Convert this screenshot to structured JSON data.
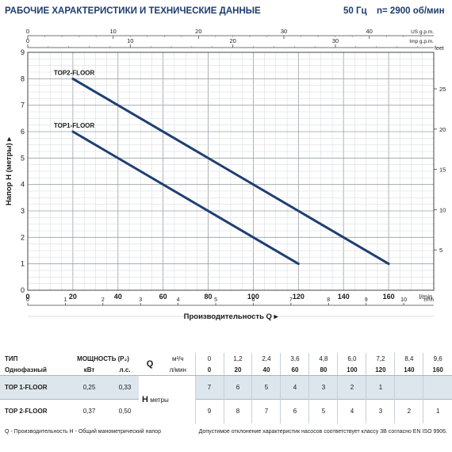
{
  "header": {
    "title": "РАБОЧИЕ ХАРАКТЕРИСТИКИ И ТЕХНИЧЕСКИЕ ДАННЫЕ",
    "freq": "50 Гц",
    "rpm": "n= 2900 об/мин"
  },
  "chart_data": {
    "type": "line",
    "ylabel": "Напор H (метры)",
    "xlabel": "Производительность Q",
    "x_unit_lmin": "l/min",
    "x_unit_m3h": "m³/h",
    "y2_unit": "feet",
    "top1_unit": "US g.p.m.",
    "top2_unit": "Imp g.p.m.",
    "xlim": [
      0,
      180
    ],
    "ylim": [
      0,
      9
    ],
    "grid": true,
    "x_ticks_lmin": [
      "0",
      "20",
      "40",
      "60",
      "80",
      "100",
      "120",
      "140",
      "160"
    ],
    "x_ticks_m3h": [
      "0",
      "1",
      "2",
      "3",
      "4",
      "5",
      "6",
      "7",
      "8",
      "9",
      "10"
    ],
    "y_ticks": [
      "0",
      "1",
      "2",
      "3",
      "4",
      "5",
      "6",
      "7",
      "8",
      "9"
    ],
    "feet_ticks": [
      "5",
      "10",
      "15",
      "20",
      "25"
    ],
    "us_gpm_ticks": [
      "0",
      "10",
      "20",
      "30",
      "40"
    ],
    "imp_gpm_ticks": [
      "0",
      "10",
      "20",
      "30"
    ],
    "series": [
      {
        "name": "TOP1-FLOOR",
        "x": [
          20,
          120
        ],
        "y": [
          6,
          1
        ],
        "color": "#1f3f73"
      },
      {
        "name": "TOP2-FLOOR",
        "x": [
          20,
          160
        ],
        "y": [
          8,
          1
        ],
        "color": "#1f3f73"
      }
    ]
  },
  "table": {
    "type_label": "ТИП",
    "phase_label": "Однофазный",
    "power_label": "МОЩНОСТЬ (P₂)",
    "kw_label": "кВт",
    "hp_label": "л.с.",
    "q_label": "Q",
    "m3h_label": "м³/ч",
    "lmin_label": "л/мин",
    "h_label": "H",
    "h_unit": "метры",
    "m3h_values": [
      "0",
      "1,2",
      "2,4",
      "3,6",
      "4,8",
      "6,0",
      "7,2",
      "8,4",
      "9,6"
    ],
    "lmin_values": [
      "0",
      "20",
      "40",
      "60",
      "80",
      "100",
      "120",
      "140",
      "160"
    ],
    "rows": [
      {
        "model": "TOP 1-FLOOR",
        "kw": "0,25",
        "hp": "0,33",
        "h": [
          "7",
          "6",
          "5",
          "4",
          "3",
          "2",
          "1",
          "",
          ""
        ]
      },
      {
        "model": "TOP 2-FLOOR",
        "kw": "0,37",
        "hp": "0,50",
        "h": [
          "9",
          "8",
          "7",
          "6",
          "5",
          "4",
          "3",
          "2",
          "1"
        ]
      }
    ]
  },
  "footer": {
    "left": "Q - Производительность  H - Общий манометрический напор",
    "right": "Допустимое отклонение характеристик насосов соответствует классу 3B согласно EN ISO 9906."
  }
}
